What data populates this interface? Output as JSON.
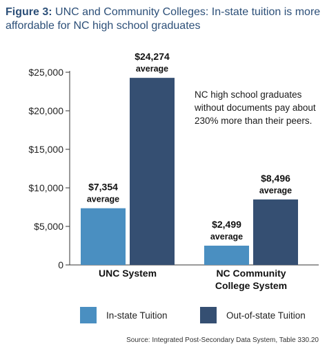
{
  "figure_label": "Figure 3:",
  "figure_title": "UNC and Community Colleges: In-state tuition is more affordable for NC high school graduates",
  "annotation": "NC high school graduates without documents pay about 230% more than their peers.",
  "source": "Source: Integrated Post-Secondary Data System, Table 330.20",
  "colors": {
    "in_state": "#4a8fc1",
    "out_of_state": "#354f72"
  },
  "chart_data": {
    "type": "bar",
    "categories": [
      "UNC System",
      "NC Community College System"
    ],
    "category_lines": [
      [
        "UNC System"
      ],
      [
        "NC Community",
        "College System"
      ]
    ],
    "series": [
      {
        "name": "In-state Tuition",
        "values": [
          7354,
          2499
        ],
        "labels": [
          "$7,354",
          "$2,499"
        ]
      },
      {
        "name": "Out-of-state Tuition",
        "values": [
          24274,
          8496
        ],
        "labels": [
          "$24,274",
          "$8,496"
        ]
      }
    ],
    "value_suffix": "average",
    "ylim": [
      0,
      25000
    ],
    "yticks": [
      0,
      5000,
      10000,
      15000,
      20000,
      25000
    ],
    "ytick_labels": [
      "0",
      "$5,000",
      "$10,000",
      "$15,000",
      "$20,000",
      "$25,000"
    ],
    "grid": false,
    "legend_position": "bottom"
  }
}
